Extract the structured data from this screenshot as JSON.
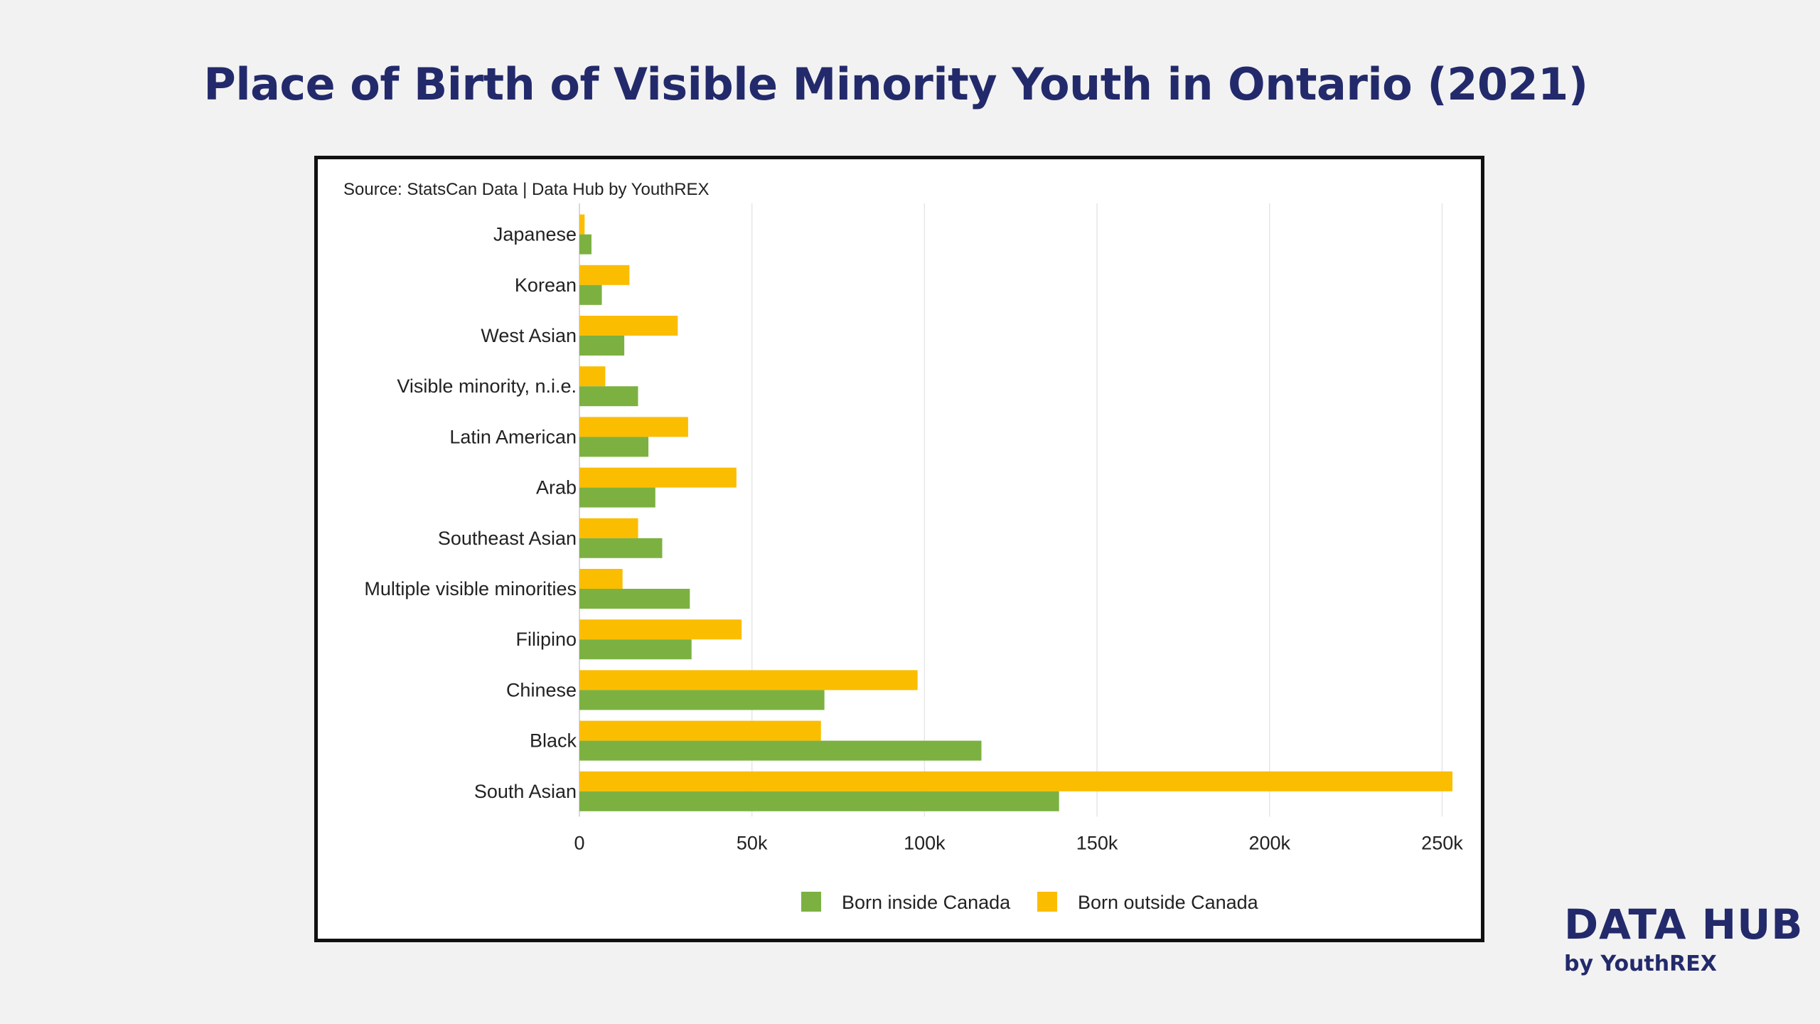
{
  "page": {
    "title": "Place of Birth of Visible Minority Youth in Ontario (2021)"
  },
  "brand": {
    "main": "DATA HUB",
    "sub": "by YouthREX"
  },
  "chart_data": {
    "type": "bar",
    "orientation": "horizontal",
    "source": "Source: StatsCan Data | Data Hub by YouthREX",
    "categories": [
      "Japanese",
      "Korean",
      "West Asian",
      "Visible minority, n.i.e.",
      "Latin American",
      "Arab",
      "Southeast Asian",
      "Multiple visible minorities",
      "Filipino",
      "Chinese",
      "Black",
      "South Asian"
    ],
    "series": [
      {
        "name": "Born outside Canada",
        "color": "#fbbd00",
        "values": [
          1500,
          14500,
          28500,
          7500,
          31500,
          45500,
          17000,
          12500,
          47000,
          98000,
          70000,
          253000
        ]
      },
      {
        "name": "Born inside Canada",
        "color": "#7cb142",
        "values": [
          3500,
          6500,
          13000,
          17000,
          20000,
          22000,
          24000,
          32000,
          32500,
          71000,
          116500,
          139000
        ]
      }
    ],
    "xlim": [
      0,
      260000
    ],
    "xticks": [
      0,
      50000,
      100000,
      150000,
      200000,
      250000
    ],
    "xtick_labels": [
      "0",
      "50k",
      "100k",
      "150k",
      "200k",
      "250k"
    ],
    "grid": "vertical",
    "legend": {
      "position": "bottom-center",
      "order": [
        "Born inside Canada",
        "Born outside Canada"
      ]
    }
  }
}
